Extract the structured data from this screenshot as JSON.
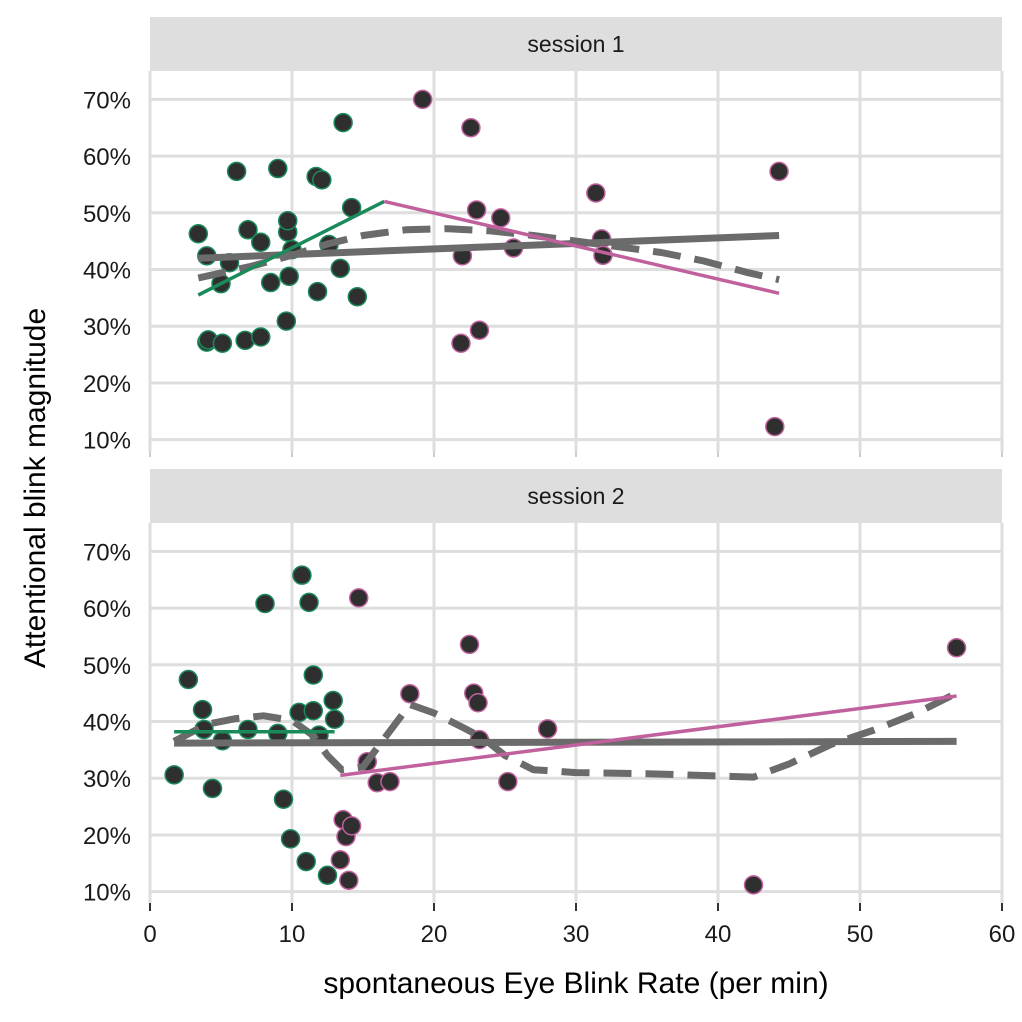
{
  "chart_data": {
    "type": "scatter",
    "xlabel": "spontaneous Eye Blink Rate (per min)",
    "ylabel": "Attentional blink magnitude",
    "xlim": [
      0,
      60
    ],
    "ylim": [
      8,
      75
    ],
    "x_ticks": [
      0,
      10,
      20,
      30,
      40,
      50,
      60
    ],
    "x_tick_labels": [
      "0",
      "10",
      "20",
      "30",
      "40",
      "50",
      "60"
    ],
    "y_ticks": [
      10,
      20,
      30,
      40,
      50,
      60,
      70
    ],
    "y_tick_labels": [
      "10%",
      "20%",
      "30%",
      "40%",
      "50%",
      "60%",
      "70%"
    ],
    "grid": true,
    "legend": "none",
    "colors": {
      "low_group": "#1b8a5a",
      "high_group": "#c0619e",
      "overall_fit": "#6b6b6b",
      "point_fill": "#2f2f2f",
      "strip_bg": "#dedede",
      "grid": "#dedede"
    },
    "panels": [
      {
        "strip_label": "session 1",
        "points": [
          {
            "x": 3.4,
            "y": 46.3,
            "group": "low"
          },
          {
            "x": 4.0,
            "y": 42.4,
            "group": "low"
          },
          {
            "x": 4.0,
            "y": 27.2,
            "group": "low"
          },
          {
            "x": 4.1,
            "y": 27.6,
            "group": "low"
          },
          {
            "x": 5.0,
            "y": 37.5,
            "group": "low"
          },
          {
            "x": 5.1,
            "y": 27.0,
            "group": "low"
          },
          {
            "x": 5.6,
            "y": 41.2,
            "group": "low"
          },
          {
            "x": 6.1,
            "y": 57.3,
            "group": "low"
          },
          {
            "x": 6.7,
            "y": 27.5,
            "group": "low"
          },
          {
            "x": 6.9,
            "y": 47.0,
            "group": "low"
          },
          {
            "x": 7.8,
            "y": 44.8,
            "group": "low"
          },
          {
            "x": 7.8,
            "y": 28.1,
            "group": "low"
          },
          {
            "x": 8.5,
            "y": 37.7,
            "group": "low"
          },
          {
            "x": 9.0,
            "y": 57.8,
            "group": "low"
          },
          {
            "x": 9.6,
            "y": 30.9,
            "group": "low"
          },
          {
            "x": 9.7,
            "y": 46.6,
            "group": "low"
          },
          {
            "x": 9.7,
            "y": 48.6,
            "group": "low"
          },
          {
            "x": 9.8,
            "y": 38.8,
            "group": "low"
          },
          {
            "x": 10.0,
            "y": 43.5,
            "group": "low"
          },
          {
            "x": 11.7,
            "y": 56.4,
            "group": "low"
          },
          {
            "x": 11.8,
            "y": 36.1,
            "group": "low"
          },
          {
            "x": 12.1,
            "y": 55.8,
            "group": "low"
          },
          {
            "x": 12.6,
            "y": 44.4,
            "group": "low"
          },
          {
            "x": 13.4,
            "y": 40.2,
            "group": "low"
          },
          {
            "x": 13.6,
            "y": 65.9,
            "group": "low"
          },
          {
            "x": 14.2,
            "y": 50.9,
            "group": "low"
          },
          {
            "x": 14.6,
            "y": 35.2,
            "group": "low"
          },
          {
            "x": 19.2,
            "y": 70.0,
            "group": "high"
          },
          {
            "x": 21.9,
            "y": 27.0,
            "group": "high"
          },
          {
            "x": 22.0,
            "y": 42.4,
            "group": "high"
          },
          {
            "x": 22.6,
            "y": 65.0,
            "group": "high"
          },
          {
            "x": 23.0,
            "y": 50.5,
            "group": "high"
          },
          {
            "x": 23.2,
            "y": 29.3,
            "group": "high"
          },
          {
            "x": 24.7,
            "y": 49.1,
            "group": "high"
          },
          {
            "x": 25.6,
            "y": 43.8,
            "group": "high"
          },
          {
            "x": 31.4,
            "y": 53.5,
            "group": "high"
          },
          {
            "x": 31.8,
            "y": 45.4,
            "group": "high"
          },
          {
            "x": 31.9,
            "y": 42.5,
            "group": "high"
          },
          {
            "x": 44.0,
            "y": 12.3,
            "group": "high"
          },
          {
            "x": 44.3,
            "y": 57.3,
            "group": "high"
          }
        ],
        "lines": [
          {
            "role": "overall-linear",
            "style": "solid",
            "color": "overall_fit",
            "x": [
              3.4,
              44.3
            ],
            "y": [
              42.0,
              46.0
            ]
          },
          {
            "role": "overall-loess",
            "style": "dashed",
            "color": "overall_fit",
            "x": [
              3.4,
              7,
              10,
              12.5,
              15,
              18,
              21,
              24,
              27,
              30,
              33,
              36,
              39,
              42,
              44.3
            ],
            "y": [
              38.5,
              40.5,
              42.5,
              44.5,
              46.0,
              47.0,
              47.2,
              46.8,
              46.0,
              45.0,
              44.0,
              43.0,
              41.5,
              39.5,
              38.2
            ]
          },
          {
            "role": "low-group-linear",
            "style": "solid",
            "color": "low_group",
            "x": [
              3.4,
              16.5
            ],
            "y": [
              35.5,
              52.0
            ]
          },
          {
            "role": "high-group-linear",
            "style": "solid",
            "color": "high_group",
            "x": [
              16.5,
              44.3
            ],
            "y": [
              52.0,
              35.8
            ]
          }
        ]
      },
      {
        "strip_label": "session 2",
        "points": [
          {
            "x": 1.7,
            "y": 30.6,
            "group": "low"
          },
          {
            "x": 2.7,
            "y": 47.4,
            "group": "low"
          },
          {
            "x": 3.7,
            "y": 42.1,
            "group": "low"
          },
          {
            "x": 3.8,
            "y": 38.6,
            "group": "low"
          },
          {
            "x": 4.4,
            "y": 28.2,
            "group": "low"
          },
          {
            "x": 5.1,
            "y": 36.6,
            "group": "low"
          },
          {
            "x": 6.9,
            "y": 38.6,
            "group": "low"
          },
          {
            "x": 8.1,
            "y": 60.8,
            "group": "low"
          },
          {
            "x": 9.0,
            "y": 37.9,
            "group": "low"
          },
          {
            "x": 9.4,
            "y": 26.3,
            "group": "low"
          },
          {
            "x": 9.9,
            "y": 19.3,
            "group": "low"
          },
          {
            "x": 10.5,
            "y": 41.6,
            "group": "low"
          },
          {
            "x": 10.7,
            "y": 65.8,
            "group": "low"
          },
          {
            "x": 11.0,
            "y": 15.3,
            "group": "low"
          },
          {
            "x": 11.2,
            "y": 61.0,
            "group": "low"
          },
          {
            "x": 11.5,
            "y": 41.9,
            "group": "low"
          },
          {
            "x": 11.5,
            "y": 48.2,
            "group": "low"
          },
          {
            "x": 11.9,
            "y": 37.6,
            "group": "low"
          },
          {
            "x": 12.5,
            "y": 12.9,
            "group": "low"
          },
          {
            "x": 12.9,
            "y": 43.7,
            "group": "low"
          },
          {
            "x": 13.0,
            "y": 40.4,
            "group": "low"
          },
          {
            "x": 13.4,
            "y": 15.6,
            "group": "high"
          },
          {
            "x": 13.6,
            "y": 22.7,
            "group": "high"
          },
          {
            "x": 13.8,
            "y": 19.7,
            "group": "high"
          },
          {
            "x": 14.0,
            "y": 12.0,
            "group": "high"
          },
          {
            "x": 14.2,
            "y": 21.6,
            "group": "high"
          },
          {
            "x": 14.7,
            "y": 61.8,
            "group": "high"
          },
          {
            "x": 15.3,
            "y": 32.9,
            "group": "high"
          },
          {
            "x": 16.0,
            "y": 29.2,
            "group": "high"
          },
          {
            "x": 16.9,
            "y": 29.4,
            "group": "high"
          },
          {
            "x": 18.3,
            "y": 44.9,
            "group": "high"
          },
          {
            "x": 22.5,
            "y": 53.6,
            "group": "high"
          },
          {
            "x": 22.8,
            "y": 45.0,
            "group": "high"
          },
          {
            "x": 23.1,
            "y": 43.3,
            "group": "high"
          },
          {
            "x": 23.2,
            "y": 36.8,
            "group": "high"
          },
          {
            "x": 25.2,
            "y": 29.4,
            "group": "high"
          },
          {
            "x": 28.0,
            "y": 38.7,
            "group": "high"
          },
          {
            "x": 42.5,
            "y": 11.2,
            "group": "high"
          },
          {
            "x": 56.8,
            "y": 53.0,
            "group": "high"
          }
        ],
        "lines": [
          {
            "role": "overall-linear",
            "style": "solid",
            "color": "overall_fit",
            "x": [
              1.7,
              56.8
            ],
            "y": [
              36.2,
              36.5
            ]
          },
          {
            "role": "overall-loess",
            "style": "dashed",
            "color": "overall_fit",
            "x": [
              1.7,
              4,
              6,
              8,
              10,
              11.5,
              12.5,
              13.5,
              15,
              16.5,
              18.3,
              20,
              22,
              23.5,
              25,
              27,
              30,
              35,
              40,
              42.5,
              45,
              48,
              51,
              54,
              56.8
            ],
            "y": [
              36.5,
              39.5,
              40.5,
              41.0,
              40.2,
              37.5,
              34.0,
              31.5,
              32.0,
              37.0,
              43.0,
              41.5,
              39.0,
              37.0,
              34.0,
              31.5,
              31.0,
              30.8,
              30.4,
              30.2,
              32.5,
              36.0,
              38.5,
              41.5,
              45.0
            ]
          },
          {
            "role": "low-group-linear",
            "style": "solid",
            "color": "low_group",
            "x": [
              1.7,
              13.0
            ],
            "y": [
              38.2,
              38.2
            ]
          },
          {
            "role": "high-group-linear",
            "style": "solid",
            "color": "high_group",
            "x": [
              13.4,
              56.8
            ],
            "y": [
              30.5,
              44.5
            ]
          }
        ]
      }
    ]
  }
}
